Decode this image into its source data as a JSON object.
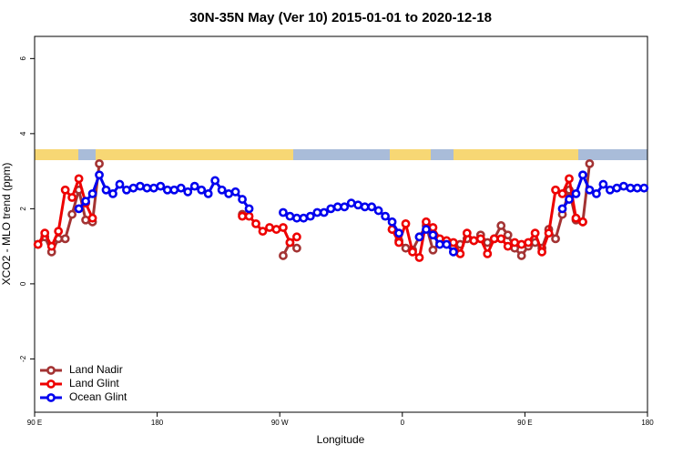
{
  "chart_data": {
    "type": "line",
    "title": "30N-35N May (Ver 10)   2015-01-01 to 2020-12-18",
    "xlabel": "Longitude",
    "ylabel": "XCO2 - MLO trend (ppm)",
    "xlim": [
      90,
      540
    ],
    "ylim": [
      -3.42,
      6.59
    ],
    "xticks": [
      {
        "value": 90,
        "label": "90 E"
      },
      180,
      {
        "value": 270,
        "label": "90 W"
      },
      {
        "value": 360,
        "label": "0"
      },
      {
        "value": 450,
        "label": "90 E"
      },
      {
        "value": 540,
        "label": "180"
      }
    ],
    "yticks": [
      -2,
      0,
      2,
      4,
      6
    ],
    "legend": "bottom-left",
    "x": [
      92.5,
      97.5,
      102.5,
      107.5,
      112.5,
      117.5,
      122.5,
      127.5,
      132.5,
      137.5,
      142.5,
      147.5,
      152.5,
      157.5,
      162.5,
      167.5,
      172.5,
      177.5,
      182.5,
      187.5,
      192.5,
      197.5,
      202.5,
      207.5,
      212.5,
      217.5,
      222.5,
      227.5,
      232.5,
      237.5,
      242.5,
      247.5,
      252.5,
      257.5,
      262.5,
      267.5,
      272.5,
      277.5,
      282.5,
      287.5,
      292.5,
      297.5,
      302.5,
      307.5,
      312.5,
      317.5,
      322.5,
      327.5,
      332.5,
      337.5,
      342.5,
      347.5,
      352.5,
      357.5,
      362.5,
      367.5,
      372.5,
      377.5,
      382.5,
      387.5,
      392.5,
      397.5,
      402.5,
      407.5,
      412.5,
      417.5,
      422.5,
      427.5,
      432.5,
      437.5,
      442.5,
      447.5,
      452.5,
      457.5,
      462.5,
      467.5,
      472.5,
      477.5,
      482.5,
      487.5,
      492.5,
      497.5,
      502.5,
      507.5,
      512.5,
      517.5,
      522.5,
      527.5,
      532.5,
      537.5
    ],
    "series": [
      {
        "name": "Land Nadir",
        "color": "#a33333",
        "values": [
          1.05,
          1.25,
          0.85,
          1.2,
          1.2,
          1.85,
          2.5,
          1.7,
          1.65,
          3.2,
          null,
          null,
          null,
          null,
          null,
          null,
          null,
          null,
          null,
          null,
          null,
          null,
          null,
          null,
          null,
          null,
          null,
          null,
          null,
          null,
          1.85,
          null,
          null,
          null,
          null,
          null,
          0.75,
          1.1,
          0.95,
          null,
          null,
          null,
          null,
          null,
          null,
          null,
          null,
          null,
          null,
          null,
          null,
          null,
          1.45,
          1.15,
          0.95,
          0.9,
          1.25,
          1.55,
          0.9,
          1.1,
          1.1,
          1.0,
          1.05,
          1.2,
          1.15,
          1.3,
          1.1,
          1.2,
          1.55,
          1.3,
          0.95,
          0.75,
          1.0,
          1.1,
          0.95,
          1.45,
          1.2,
          1.85,
          2.5,
          1.7,
          1.65,
          3.2,
          null,
          null,
          null,
          null,
          null,
          null,
          null,
          null
        ]
      },
      {
        "name": "Land Glint",
        "color": "#ee0000",
        "values": [
          1.05,
          1.35,
          1.0,
          1.4,
          2.5,
          2.3,
          2.8,
          2.15,
          1.75,
          null,
          null,
          null,
          null,
          null,
          null,
          null,
          null,
          null,
          null,
          null,
          null,
          null,
          null,
          null,
          null,
          null,
          null,
          null,
          null,
          null,
          1.8,
          1.8,
          1.6,
          1.4,
          1.5,
          1.45,
          1.5,
          1.1,
          1.25,
          null,
          null,
          null,
          null,
          null,
          null,
          null,
          null,
          null,
          null,
          null,
          null,
          null,
          1.45,
          1.1,
          1.6,
          0.85,
          0.7,
          1.65,
          1.5,
          1.2,
          1.15,
          1.1,
          0.8,
          1.35,
          1.15,
          1.2,
          0.8,
          1.2,
          1.2,
          1.0,
          1.1,
          1.05,
          1.1,
          1.35,
          0.85,
          1.35,
          2.5,
          2.4,
          2.8,
          1.75,
          1.65,
          null,
          null,
          null,
          null,
          null,
          null,
          null,
          null,
          null
        ]
      },
      {
        "name": "Ocean Glint",
        "color": "#0000ee",
        "values": [
          null,
          null,
          null,
          null,
          null,
          null,
          2.0,
          2.2,
          2.4,
          2.9,
          2.5,
          2.4,
          2.65,
          2.5,
          2.55,
          2.6,
          2.55,
          2.55,
          2.6,
          2.5,
          2.5,
          2.55,
          2.45,
          2.6,
          2.5,
          2.4,
          2.75,
          2.5,
          2.4,
          2.45,
          2.25,
          2.0,
          null,
          null,
          null,
          null,
          1.9,
          1.8,
          1.75,
          1.75,
          1.8,
          1.9,
          1.9,
          2.0,
          2.05,
          2.05,
          2.15,
          2.1,
          2.05,
          2.05,
          1.95,
          1.8,
          1.65,
          1.35,
          null,
          null,
          1.25,
          1.45,
          1.3,
          1.05,
          1.05,
          0.85,
          null,
          null,
          null,
          null,
          null,
          null,
          null,
          null,
          null,
          null,
          null,
          null,
          null,
          null,
          null,
          2.0,
          2.25,
          2.4,
          2.9,
          2.5,
          2.4,
          2.65,
          2.5,
          2.55,
          2.6,
          2.55,
          2.55,
          2.55
        ]
      }
    ]
  }
}
